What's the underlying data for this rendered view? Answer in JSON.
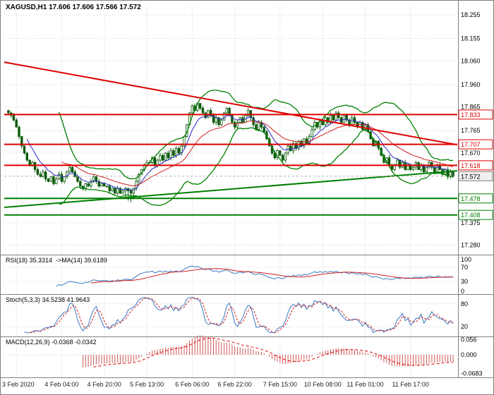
{
  "window": {
    "title": "XAGUSD,H1 17.606 17.606 17.566 17.572"
  },
  "colors": {
    "background": "#ffffff",
    "border": "#808080",
    "grid": "#d4d4d4",
    "candle_border": "#0b5a0b",
    "candle_bull": "#ffffff",
    "candle_bear": "#0b5a0b",
    "bollinger": "#008000",
    "ma_fast": "#2929c8",
    "ma_slow": "#d02020",
    "resistance": "#e00000",
    "support": "#008000",
    "bid_line": "#b0b0b0",
    "price_marker_border": "#808080",
    "price_marker_fill": "#f0f0f0",
    "rsi_line": "#3a78c3",
    "rsi_ma": "#d02020",
    "stoch_k": "#3a78c3",
    "stoch_d": "#d02020",
    "macd_hist": "#cc5555",
    "macd_signal": "#e00000",
    "axis_text": "#000000",
    "time_text": "#222222"
  },
  "chart_data": {
    "type": "candlestick",
    "symbol": "XAGUSD",
    "timeframe": "H1",
    "title": "XAGUSD,H1 17.606 17.606 17.566 17.572",
    "quote": {
      "open": "17.606",
      "high": "17.606",
      "low": "17.566",
      "close": "17.572"
    },
    "y_range": [
      17.24,
      18.3
    ],
    "y_ticks": [
      18.255,
      18.155,
      18.06,
      17.96,
      17.865,
      17.765,
      17.67,
      17.375,
      17.28
    ],
    "x_ticks": [
      "3 Feb 2020",
      "4 Feb 04:00",
      "4 Feb 20:00",
      "5 Feb 13:00",
      "6 Feb 06:00",
      "6 Feb 22:00",
      "7 Feb 15:00",
      "10 Feb 08:00",
      "11 Feb 01:00",
      "11 Feb 17:00"
    ],
    "tick_bar_indices": [
      3,
      20,
      36,
      52,
      69,
      85,
      102,
      118,
      134,
      151
    ],
    "first_open": 17.85,
    "closes": [
      17.84,
      17.83,
      17.81,
      17.78,
      17.74,
      17.7,
      17.67,
      17.64,
      17.62,
      17.63,
      17.6,
      17.58,
      17.57,
      17.59,
      17.56,
      17.55,
      17.57,
      17.54,
      17.56,
      17.58,
      17.55,
      17.57,
      17.59,
      17.61,
      17.59,
      17.57,
      17.55,
      17.53,
      17.52,
      17.54,
      17.53,
      17.55,
      17.57,
      17.55,
      17.53,
      17.54,
      17.53,
      17.53,
      17.51,
      17.52,
      17.5,
      17.52,
      17.5,
      17.51,
      17.52,
      17.51,
      17.5,
      17.52,
      17.55,
      17.58,
      17.6,
      17.62,
      17.63,
      17.63,
      17.65,
      17.62,
      17.64,
      17.66,
      17.64,
      17.67,
      17.65,
      17.68,
      17.66,
      17.69,
      17.67,
      17.7,
      17.74,
      17.79,
      17.84,
      17.87,
      17.85,
      17.88,
      17.86,
      17.84,
      17.82,
      17.85,
      17.83,
      17.8,
      17.82,
      17.79,
      17.81,
      17.84,
      17.86,
      17.83,
      17.8,
      17.78,
      17.8,
      17.82,
      17.8,
      17.83,
      17.85,
      17.82,
      17.79,
      17.77,
      17.8,
      17.78,
      17.76,
      17.73,
      17.7,
      17.67,
      17.65,
      17.68,
      17.66,
      17.64,
      17.67,
      17.7,
      17.68,
      17.71,
      17.69,
      17.72,
      17.7,
      17.73,
      17.71,
      17.74,
      17.77,
      17.8,
      17.78,
      17.81,
      17.79,
      17.82,
      17.8,
      17.83,
      17.81,
      17.84,
      17.82,
      17.8,
      17.83,
      17.81,
      17.79,
      17.82,
      17.8,
      17.78,
      17.8,
      17.77,
      17.79,
      17.76,
      17.73,
      17.7,
      17.72,
      17.69,
      17.66,
      17.63,
      17.65,
      17.62,
      17.6,
      17.62,
      17.64,
      17.61,
      17.63,
      17.6,
      17.62,
      17.6,
      17.61,
      17.63,
      17.6,
      17.62,
      17.59,
      17.61,
      17.63,
      17.61,
      17.59,
      17.62,
      17.6,
      17.58,
      17.6,
      17.57,
      17.59,
      17.572
    ],
    "spike_lows": {
      "44": 17.482,
      "45": 17.468,
      "46": 17.462,
      "47": 17.475
    },
    "levels": {
      "resistance": [
        17.833,
        17.707,
        17.618
      ],
      "support": [
        17.478,
        17.408
      ],
      "current_price": 17.572
    },
    "trendlines": [
      {
        "name": "descending-resistance",
        "color": "#e00000",
        "p0": 18.055,
        "p1": 17.705
      },
      {
        "name": "ascending-support",
        "color": "#008000",
        "p0": 17.44,
        "p1": 17.595
      }
    ],
    "indicators": {
      "rsi": {
        "label": "RSI(18) 35.3314  ->MA(14) 39.6189",
        "period": 18,
        "ma_period": 14,
        "value": 35.3314,
        "ma_value": 39.6189,
        "scale": [
          100,
          70,
          30,
          0
        ],
        "level_lines": [
          70,
          30
        ]
      },
      "stoch": {
        "label": "Stoch(5,3,3) 34.5238 41.9643",
        "k": 5,
        "d": 3,
        "slowing": 3,
        "value": 34.5238,
        "signal_value": 41.9643,
        "scale": [
          80,
          20
        ],
        "level_lines": [
          80,
          20
        ]
      },
      "macd": {
        "label": "MACD(12,26,9) -0.0368 -0.0342",
        "fast": 12,
        "slow": 26,
        "signal": 9,
        "value": -0.0368,
        "signal_value": -0.0342,
        "scale_labels": [
          "0.056",
          "0.000",
          "-0.0683"
        ],
        "scale_values": [
          0.056,
          0.0,
          -0.0683
        ]
      }
    }
  }
}
